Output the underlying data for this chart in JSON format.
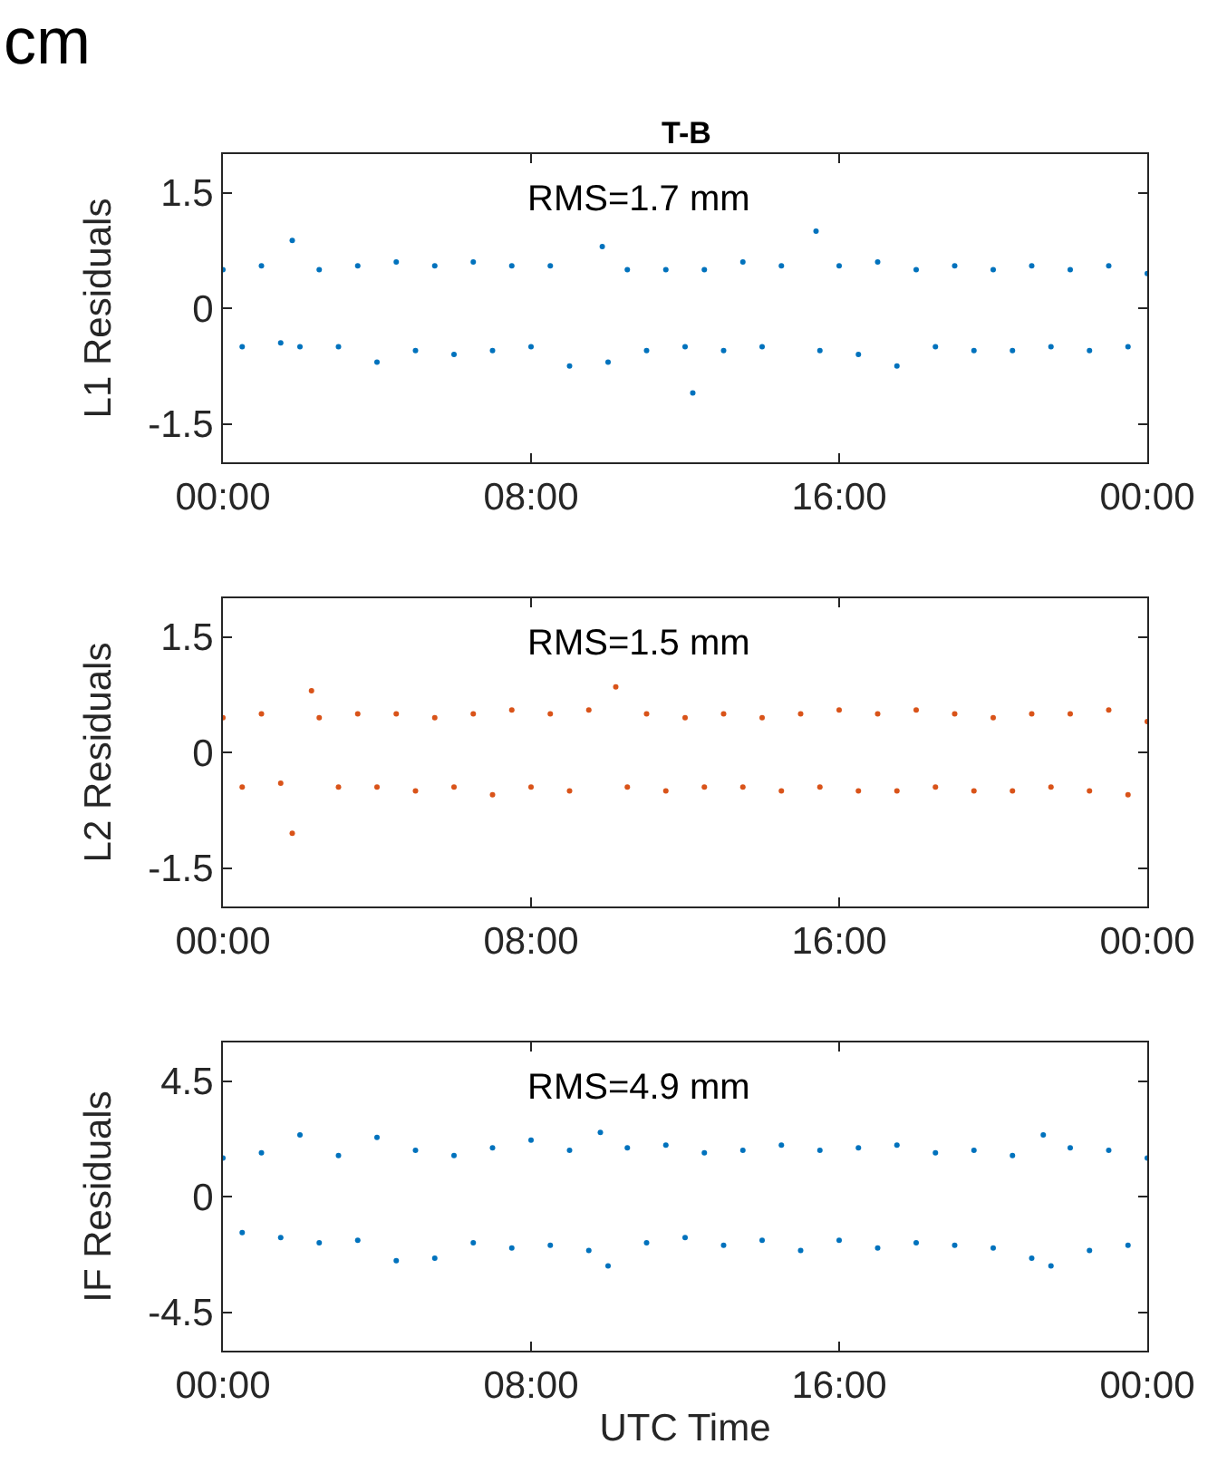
{
  "chart_data": [
    {
      "type": "scatter",
      "title": "T-B",
      "subtitle": "cm",
      "ylabel": "L1 Residuals",
      "annotations": [
        "RMS=1.7 mm"
      ],
      "marker": "circle",
      "xlim": [
        0,
        24
      ],
      "xticks": [
        {
          "value": 0,
          "label": "00:00"
        },
        {
          "value": 8,
          "label": "08:00"
        },
        {
          "value": 16,
          "label": "16:00"
        },
        {
          "value": 24,
          "label": "00:00"
        }
      ],
      "ylim": [
        -2,
        2
      ],
      "yticks": [
        -1.5,
        0,
        1.5
      ],
      "series": [
        {
          "color": "#0072bd",
          "x": [
            0,
            0.5,
            1,
            1.5,
            1.8,
            2,
            2.5,
            3,
            3.5,
            4,
            4.5,
            5,
            5.5,
            6,
            6.5,
            7,
            7.5,
            8,
            8.5,
            9,
            9.85,
            10,
            10.5,
            11,
            11.5,
            12,
            12.2,
            12.5,
            13,
            13.5,
            14,
            14.5,
            15.4,
            15.5,
            16,
            16.5,
            17,
            17.5,
            18,
            18.5,
            19,
            19.5,
            20,
            20.5,
            21,
            21.5,
            22,
            22.5,
            23,
            23.5,
            24
          ],
          "values": [
            0.5,
            -0.5,
            0.55,
            -0.45,
            0.88,
            -0.5,
            0.5,
            -0.5,
            0.55,
            -0.7,
            0.6,
            -0.55,
            0.55,
            -0.6,
            0.6,
            -0.55,
            0.55,
            -0.5,
            0.55,
            -0.75,
            0.8,
            -0.7,
            0.5,
            -0.55,
            0.5,
            -0.5,
            -1.1,
            0.5,
            -0.55,
            0.6,
            -0.5,
            0.55,
            1.0,
            -0.55,
            0.55,
            -0.6,
            0.6,
            -0.75,
            0.5,
            -0.5,
            0.55,
            -0.55,
            0.5,
            -0.55,
            0.55,
            -0.5,
            0.5,
            -0.55,
            0.55,
            -0.5,
            0.45
          ]
        }
      ]
    },
    {
      "type": "scatter",
      "ylabel": "L2 Residuals",
      "annotations": [
        "RMS=1.5 mm"
      ],
      "marker": "circle",
      "xlim": [
        0,
        24
      ],
      "xticks": [
        {
          "value": 0,
          "label": "00:00"
        },
        {
          "value": 8,
          "label": "08:00"
        },
        {
          "value": 16,
          "label": "16:00"
        },
        {
          "value": 24,
          "label": "00:00"
        }
      ],
      "ylim": [
        -2,
        2
      ],
      "yticks": [
        -1.5,
        0,
        1.5
      ],
      "series": [
        {
          "color": "#d95319",
          "x": [
            0,
            0.5,
            1,
            1.5,
            1.8,
            2.3,
            2.5,
            3,
            3.5,
            4,
            4.5,
            5,
            5.5,
            6,
            6.5,
            7,
            7.5,
            8,
            8.5,
            9,
            9.5,
            10.2,
            10.5,
            11,
            11.5,
            12,
            12.5,
            13,
            13.5,
            14,
            14.5,
            15,
            15.5,
            16,
            16.5,
            17,
            17.5,
            18,
            18.5,
            19,
            19.5,
            20,
            20.5,
            21,
            21.5,
            22,
            22.5,
            23,
            23.5,
            24
          ],
          "values": [
            0.45,
            -0.45,
            0.5,
            -0.4,
            -1.05,
            0.8,
            0.45,
            -0.45,
            0.5,
            -0.45,
            0.5,
            -0.5,
            0.45,
            -0.45,
            0.5,
            -0.55,
            0.55,
            -0.45,
            0.5,
            -0.5,
            0.55,
            0.85,
            -0.45,
            0.5,
            -0.5,
            0.45,
            -0.45,
            0.5,
            -0.45,
            0.45,
            -0.5,
            0.5,
            -0.45,
            0.55,
            -0.5,
            0.5,
            -0.5,
            0.55,
            -0.45,
            0.5,
            -0.5,
            0.45,
            -0.5,
            0.5,
            -0.45,
            0.5,
            -0.5,
            0.55,
            -0.55,
            0.4
          ]
        }
      ]
    },
    {
      "type": "scatter",
      "ylabel": "IF Residuals",
      "xlabel": "UTC Time",
      "annotations": [
        "RMS=4.9 mm"
      ],
      "marker": "circle",
      "xlim": [
        0,
        24
      ],
      "xticks": [
        {
          "value": 0,
          "label": "00:00"
        },
        {
          "value": 8,
          "label": "08:00"
        },
        {
          "value": 16,
          "label": "16:00"
        },
        {
          "value": 24,
          "label": "00:00"
        }
      ],
      "ylim": [
        -6,
        6
      ],
      "yticks": [
        -4.5,
        0,
        4.5
      ],
      "series": [
        {
          "color": "#0072bd",
          "x": [
            0,
            0.5,
            1,
            1.5,
            2,
            2.5,
            3,
            3.5,
            4,
            4.5,
            5,
            5.5,
            6,
            6.5,
            7,
            7.5,
            8,
            8.5,
            9,
            9.5,
            9.8,
            10,
            10.5,
            11,
            11.5,
            12,
            12.5,
            13,
            13.5,
            14,
            14.5,
            15,
            15.5,
            16,
            16.5,
            17,
            17.5,
            18,
            18.5,
            19,
            19.5,
            20,
            20.5,
            21,
            21.3,
            21.5,
            22,
            22.5,
            23,
            23.5,
            24
          ],
          "values": [
            1.5,
            -1.4,
            1.7,
            -1.6,
            2.4,
            -1.8,
            1.6,
            -1.7,
            2.3,
            -2.5,
            1.8,
            -2.4,
            1.6,
            -1.8,
            1.9,
            -2.0,
            2.2,
            -1.9,
            1.8,
            -2.1,
            2.5,
            -2.7,
            1.9,
            -1.8,
            2.0,
            -1.6,
            1.7,
            -1.9,
            1.8,
            -1.7,
            2.0,
            -2.1,
            1.8,
            -1.7,
            1.9,
            -2.0,
            2.0,
            -1.8,
            1.7,
            -1.9,
            1.8,
            -2.0,
            1.6,
            -2.4,
            2.4,
            -2.7,
            1.9,
            -2.1,
            1.8,
            -1.9,
            1.5
          ]
        }
      ]
    }
  ]
}
